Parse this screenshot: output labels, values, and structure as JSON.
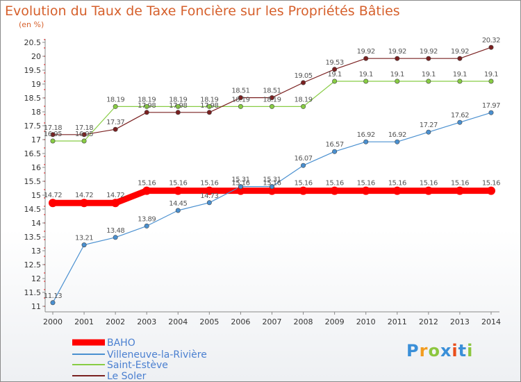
{
  "chart_data": {
    "type": "line",
    "title": "Evolution du Taux de Taxe Foncière sur les Propriétés Bâties",
    "unit_label": "(en %)",
    "xlabel": "",
    "ylabel": "(en %)",
    "ylim": [
      11,
      20.5
    ],
    "yticks": [
      "11",
      "11.5",
      "12",
      "12.5",
      "13",
      "13.5",
      "14",
      "14.5",
      "15",
      "15.5",
      "16",
      "16.5",
      "17",
      "17.5",
      "18",
      "18.5",
      "19",
      "19.5",
      "20",
      "20.5"
    ],
    "categories": [
      "2000",
      "2001",
      "2002",
      "2003",
      "2004",
      "2005",
      "2006",
      "2007",
      "2008",
      "2009",
      "2010",
      "2011",
      "2012",
      "2013",
      "2014"
    ],
    "series": [
      {
        "name": "BAHO",
        "color": "#ff0000",
        "labels": [
          "14.72",
          "14.72",
          "14.72",
          "15.16",
          "15.16",
          "15.16",
          "15.16",
          "15.16",
          "15.16",
          "15.16",
          "15.16",
          "15.16",
          "15.16",
          "15.16",
          "15.16"
        ],
        "values": [
          14.72,
          14.72,
          14.72,
          15.16,
          15.16,
          15.16,
          15.16,
          15.16,
          15.16,
          15.16,
          15.16,
          15.16,
          15.16,
          15.16,
          15.16
        ]
      },
      {
        "name": "Villeneuve-la-Rivière",
        "color": "#4a90d0",
        "labels": [
          "11.13",
          "13.21",
          "13.48",
          "13.89",
          "14.45",
          "14.73",
          "15.31",
          "15.31",
          "16.07",
          "16.57",
          "16.92",
          "16.92",
          "17.27",
          "17.62",
          "17.97"
        ],
        "values": [
          11.13,
          13.21,
          13.48,
          13.89,
          14.45,
          14.73,
          15.31,
          15.31,
          16.07,
          16.57,
          16.92,
          16.92,
          17.27,
          17.62,
          17.97
        ]
      },
      {
        "name": "Saint-Estève",
        "color": "#88cc44",
        "labels": [
          "16.95",
          "16.95",
          "18.19",
          "18.19",
          "18.19",
          "18.19",
          "18.19",
          "18.19",
          "18.19",
          "19.1",
          "19.1",
          "19.1",
          "19.1",
          "19.1",
          "19.1"
        ],
        "values": [
          16.95,
          16.95,
          18.19,
          18.19,
          18.19,
          18.19,
          18.19,
          18.19,
          18.19,
          19.1,
          19.1,
          19.1,
          19.1,
          19.1,
          19.1
        ]
      },
      {
        "name": "Le Soler",
        "color": "#7a2020",
        "labels": [
          "17.18",
          "17.18",
          "17.37",
          "17.98",
          "17.98",
          "17.98",
          "18.51",
          "18.51",
          "19.05",
          "19.53",
          "19.92",
          "19.92",
          "19.92",
          "19.92",
          "20.32"
        ],
        "values": [
          17.18,
          17.18,
          17.37,
          17.98,
          17.98,
          17.98,
          18.51,
          18.51,
          19.05,
          19.53,
          19.92,
          19.92,
          19.92,
          19.92,
          20.32
        ]
      }
    ],
    "legend_position": "bottom-left",
    "grid": false
  },
  "branding": {
    "logo_text": "Proxiti",
    "logo_colors": [
      "#3a8fd8",
      "#f29c1f",
      "#8cc63f",
      "#3a8fd8",
      "#e94e1b",
      "#3a8fd8",
      "#8cc63f"
    ]
  }
}
